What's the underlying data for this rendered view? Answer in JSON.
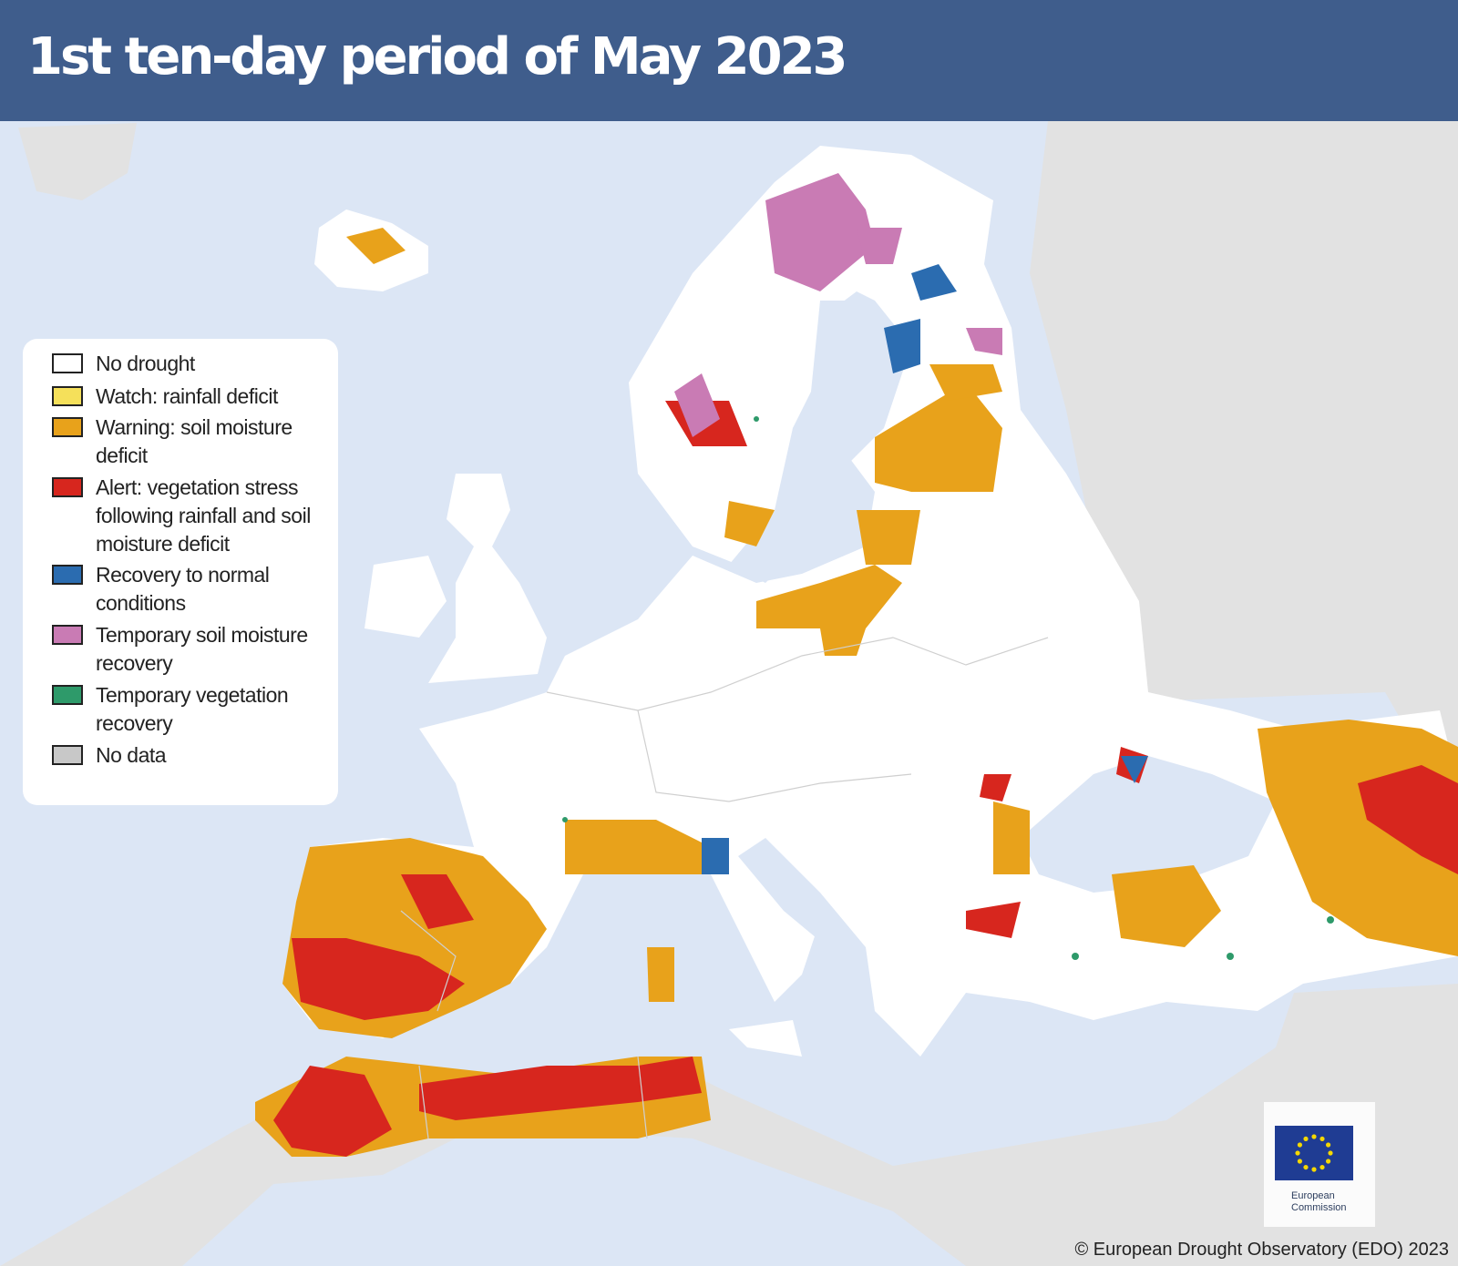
{
  "title": "1st ten-day period of May 2023",
  "legend": [
    {
      "label": "No drought",
      "color": "#ffffff"
    },
    {
      "label": "Watch: rainfall deficit",
      "color": "#f5e05a"
    },
    {
      "label": "Warning: soil moisture deficit",
      "color": "#e8a21b"
    },
    {
      "label": "Alert: vegetation stress following rainfall and soil moisture deficit",
      "color": "#d7261e"
    },
    {
      "label": "Recovery to normal conditions",
      "color": "#2b6cb0"
    },
    {
      "label": "Temporary soil moisture recovery",
      "color": "#c97bb4"
    },
    {
      "label": "Temporary vegetation recovery",
      "color": "#2e9a6a"
    },
    {
      "label": "No data",
      "color": "#c8c8c8"
    }
  ],
  "logo": {
    "line1": "European",
    "line2": "Commission"
  },
  "credit": "© European Drought Observatory (EDO) 2023",
  "colors": {
    "sea": "#dce6f5",
    "land_outside": "#e2e2e2",
    "header": "#3f5d8c"
  }
}
